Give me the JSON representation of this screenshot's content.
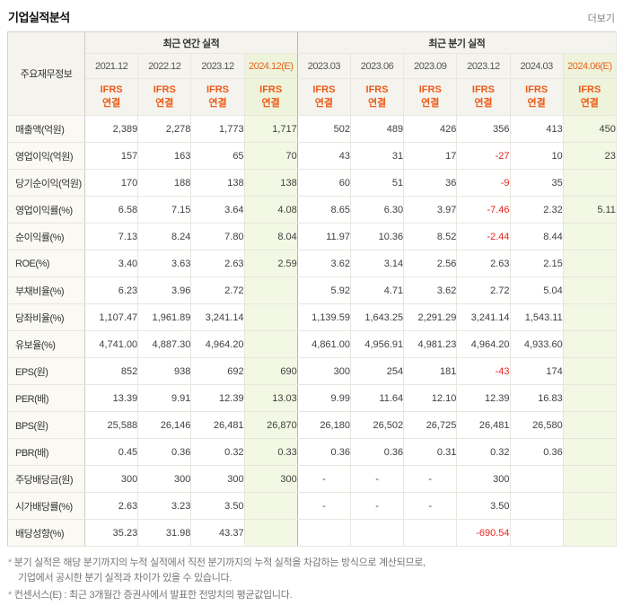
{
  "page": {
    "title": "기업실적분석",
    "more_link": "더보기"
  },
  "colors": {
    "accent_orange": "#ee5a16",
    "negative_red": "#e5261f",
    "estimate_bg": "#f2f8e4"
  },
  "table": {
    "corner_header": "주요재무정보",
    "groups": [
      {
        "label": "최근 연간 실적",
        "span": 4
      },
      {
        "label": "최근 분기 실적",
        "span": 6
      }
    ],
    "columns": [
      {
        "label": "2021.12",
        "estimate": false
      },
      {
        "label": "2022.12",
        "estimate": false
      },
      {
        "label": "2023.12",
        "estimate": false
      },
      {
        "label": "2024.12(E)",
        "estimate": true
      },
      {
        "label": "2023.03",
        "estimate": false
      },
      {
        "label": "2023.06",
        "estimate": false
      },
      {
        "label": "2023.09",
        "estimate": false
      },
      {
        "label": "2023.12",
        "estimate": false
      },
      {
        "label": "2024.03",
        "estimate": false
      },
      {
        "label": "2024.06(E)",
        "estimate": true
      }
    ],
    "standard_label": [
      "IFRS",
      "연결"
    ],
    "rows": [
      {
        "label": "매출액(억원)",
        "values": [
          "2,389",
          "2,278",
          "1,773",
          "1,717",
          "502",
          "489",
          "426",
          "356",
          "413",
          "450"
        ]
      },
      {
        "label": "영업이익(억원)",
        "values": [
          "157",
          "163",
          "65",
          "70",
          "43",
          "31",
          "17",
          "-27",
          "10",
          "23"
        ]
      },
      {
        "label": "당기순이익(억원)",
        "values": [
          "170",
          "188",
          "138",
          "138",
          "60",
          "51",
          "36",
          "-9",
          "35",
          ""
        ]
      },
      {
        "label": "영업이익률(%)",
        "values": [
          "6.58",
          "7.15",
          "3.64",
          "4.08",
          "8.65",
          "6.30",
          "3.97",
          "-7.46",
          "2.32",
          "5.11"
        ]
      },
      {
        "label": "순이익률(%)",
        "values": [
          "7.13",
          "8.24",
          "7.80",
          "8.04",
          "11.97",
          "10.36",
          "8.52",
          "-2.44",
          "8.44",
          ""
        ]
      },
      {
        "label": "ROE(%)",
        "values": [
          "3.40",
          "3.63",
          "2.63",
          "2.59",
          "3.62",
          "3.14",
          "2.56",
          "2.63",
          "2.15",
          ""
        ]
      },
      {
        "label": "부채비율(%)",
        "values": [
          "6.23",
          "3.96",
          "2.72",
          "",
          "5.92",
          "4.71",
          "3.62",
          "2.72",
          "5.04",
          ""
        ]
      },
      {
        "label": "당좌비율(%)",
        "values": [
          "1,107.47",
          "1,961.89",
          "3,241.14",
          "",
          "1,139.59",
          "1,643.25",
          "2,291.29",
          "3,241.14",
          "1,543.11",
          ""
        ]
      },
      {
        "label": "유보율(%)",
        "values": [
          "4,741.00",
          "4,887.30",
          "4,964.20",
          "",
          "4,861.00",
          "4,956.91",
          "4,981.23",
          "4,964.20",
          "4,933.60",
          ""
        ]
      },
      {
        "label": "EPS(원)",
        "values": [
          "852",
          "938",
          "692",
          "690",
          "300",
          "254",
          "181",
          "-43",
          "174",
          ""
        ]
      },
      {
        "label": "PER(배)",
        "values": [
          "13.39",
          "9.91",
          "12.39",
          "13.03",
          "9.99",
          "11.64",
          "12.10",
          "12.39",
          "16.83",
          ""
        ]
      },
      {
        "label": "BPS(원)",
        "values": [
          "25,588",
          "26,146",
          "26,481",
          "26,870",
          "26,180",
          "26,502",
          "26,725",
          "26,481",
          "26,580",
          ""
        ]
      },
      {
        "label": "PBR(배)",
        "values": [
          "0.45",
          "0.36",
          "0.32",
          "0.33",
          "0.36",
          "0.36",
          "0.31",
          "0.32",
          "0.36",
          ""
        ]
      },
      {
        "label": "주당배당금(원)",
        "values": [
          "300",
          "300",
          "300",
          "300",
          "-",
          "-",
          "-",
          "300",
          "",
          ""
        ]
      },
      {
        "label": "시가배당률(%)",
        "values": [
          "2.63",
          "3.23",
          "3.50",
          "",
          "-",
          "-",
          "-",
          "3.50",
          "",
          ""
        ]
      },
      {
        "label": "배당성향(%)",
        "values": [
          "35.23",
          "31.98",
          "43.37",
          "",
          "",
          "",
          "",
          "-690.54",
          "",
          ""
        ]
      }
    ]
  },
  "footnotes": [
    {
      "lines": [
        "분기 실적은 해당 분기까지의 누적 실적에서 직전 분기까지의 누적 실적을 차감하는 방식으로 계산되므로,",
        "기업에서 공시한 분기 실적과 차이가 있을 수 있습니다."
      ]
    },
    {
      "lines": [
        "컨센서스(E) : 최근 3개월간 증권사에서 발표한 전망치의 평균값입니다."
      ]
    }
  ]
}
